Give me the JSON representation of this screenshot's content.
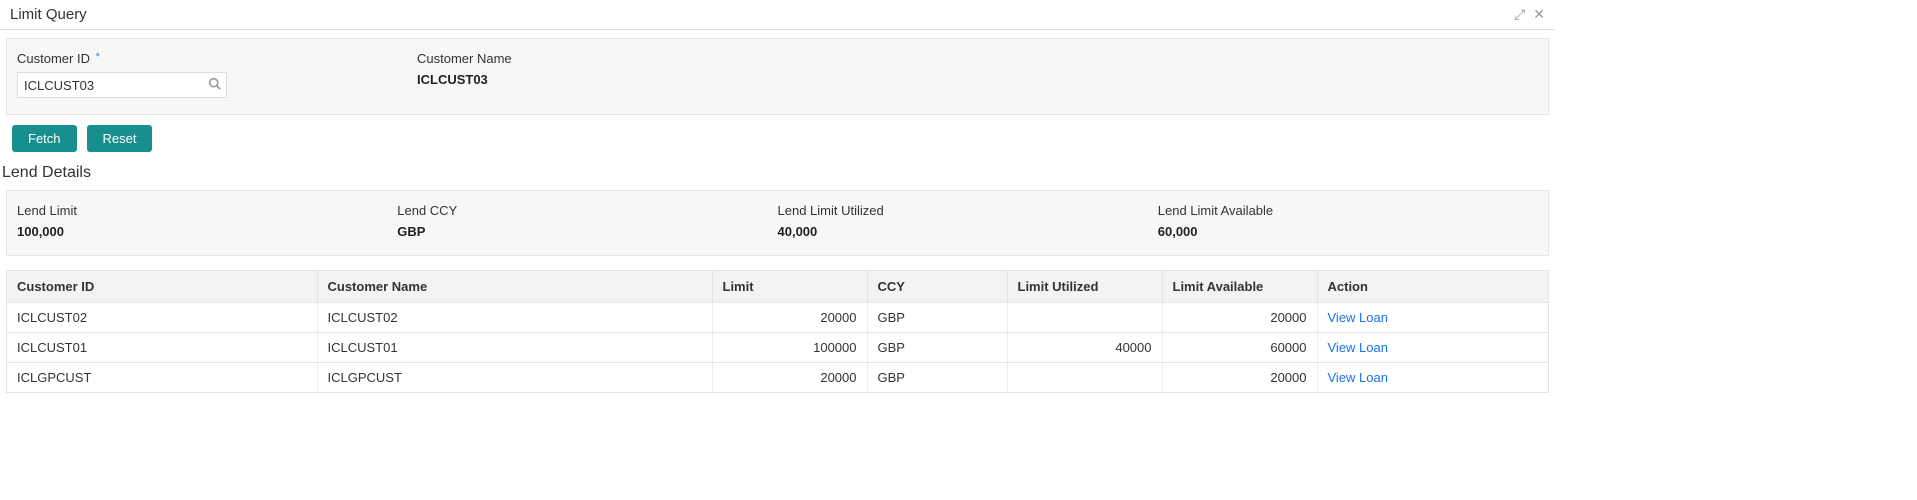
{
  "window": {
    "title": "Limit Query"
  },
  "form": {
    "customer_id": {
      "label": "Customer ID",
      "required_mark": "*",
      "value": "ICLCUST03"
    },
    "customer_name": {
      "label": "Customer Name",
      "value": "ICLCUST03"
    }
  },
  "buttons": {
    "fetch": "Fetch",
    "reset": "Reset"
  },
  "section": {
    "lend_details_title": "Lend Details"
  },
  "lend": {
    "limit": {
      "label": "Lend Limit",
      "value": "100,000"
    },
    "ccy": {
      "label": "Lend CCY",
      "value": "GBP"
    },
    "utilized": {
      "label": "Lend Limit Utilized",
      "value": "40,000"
    },
    "available": {
      "label": "Lend Limit Available",
      "value": "60,000"
    }
  },
  "table": {
    "columns": {
      "customer_id": "Customer ID",
      "customer_name": "Customer Name",
      "limit": "Limit",
      "ccy": "CCY",
      "limit_utilized": "Limit Utilized",
      "limit_available": "Limit Available",
      "action": "Action"
    },
    "action_label": "View Loan",
    "rows": [
      {
        "customer_id": "ICLCUST02",
        "customer_name": "ICLCUST02",
        "limit": "20000",
        "ccy": "GBP",
        "limit_utilized": "",
        "limit_available": "20000"
      },
      {
        "customer_id": "ICLCUST01",
        "customer_name": "ICLCUST01",
        "limit": "100000",
        "ccy": "GBP",
        "limit_utilized": "40000",
        "limit_available": "60000"
      },
      {
        "customer_id": "ICLGPCUST",
        "customer_name": "ICLGPCUST",
        "limit": "20000",
        "ccy": "GBP",
        "limit_utilized": "",
        "limit_available": "20000"
      }
    ]
  },
  "colors": {
    "button_bg": "#178f8f",
    "link": "#1a73e8",
    "panel_bg": "#f7f7f7",
    "border": "#e5e5e5",
    "required_star": "#1a8cff"
  }
}
